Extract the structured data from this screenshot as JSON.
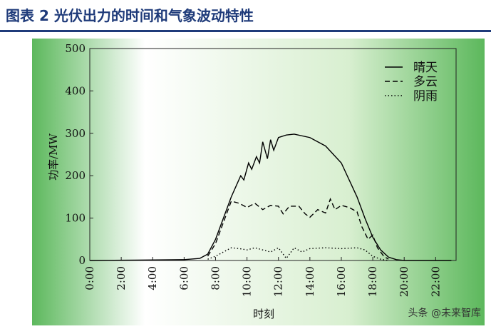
{
  "header": {
    "title": "图表 2   光伏出力的时间和气象波动特性"
  },
  "chart_data": {
    "type": "line",
    "x_label": "时刻",
    "y_label": "功率/MW",
    "xlim": [
      0,
      23.3
    ],
    "ylim": [
      0,
      500
    ],
    "xticks": [
      {
        "value": 0,
        "label": "0:00"
      },
      {
        "value": 2,
        "label": "2:00"
      },
      {
        "value": 4,
        "label": "4:00"
      },
      {
        "value": 6,
        "label": "6:00"
      },
      {
        "value": 8,
        "label": "8:00"
      },
      {
        "value": 10,
        "label": "10:00"
      },
      {
        "value": 12,
        "label": "12:00"
      },
      {
        "value": 14,
        "label": "14:00"
      },
      {
        "value": 16,
        "label": "16:00"
      },
      {
        "value": 18,
        "label": "18:00"
      },
      {
        "value": 20,
        "label": "20:00"
      },
      {
        "value": 22,
        "label": "22:00"
      }
    ],
    "yticks": [
      0,
      100,
      200,
      300,
      400,
      500
    ],
    "legend": "top-right",
    "series": [
      {
        "name": "晴天",
        "color": "#000000",
        "dash": "solid",
        "x": [
          0,
          3,
          6,
          7,
          7.5,
          8,
          8.5,
          9,
          9.3,
          9.6,
          9.8,
          10.1,
          10.3,
          10.6,
          10.8,
          11,
          11.3,
          11.5,
          11.7,
          12,
          12.5,
          13,
          14,
          15,
          16,
          17,
          17.5,
          18,
          18.5,
          19,
          19.5,
          20,
          23
        ],
        "values": [
          0,
          1,
          2,
          5,
          15,
          50,
          100,
          150,
          175,
          200,
          190,
          230,
          215,
          245,
          230,
          280,
          240,
          285,
          260,
          290,
          296,
          298,
          290,
          270,
          230,
          150,
          100,
          55,
          25,
          8,
          2,
          0,
          0
        ]
      },
      {
        "name": "多云",
        "color": "#000000",
        "dash": "dashed",
        "x": [
          7.5,
          8,
          8.5,
          9,
          9.5,
          10,
          10.5,
          11,
          11.5,
          12,
          12.3,
          12.7,
          13.3,
          13.7,
          14,
          14.5,
          15,
          15.3,
          15.6,
          16,
          16.5,
          17,
          17.3,
          17.7,
          18,
          18.3,
          18.7,
          19
        ],
        "values": [
          10,
          40,
          90,
          140,
          135,
          125,
          135,
          120,
          130,
          128,
          110,
          128,
          128,
          110,
          102,
          120,
          112,
          145,
          120,
          130,
          125,
          115,
          80,
          50,
          60,
          30,
          10,
          3
        ]
      },
      {
        "name": "阴雨",
        "color": "#000000",
        "dash": "dotted",
        "x": [
          7.5,
          8,
          8.5,
          9,
          9.5,
          10,
          10.5,
          11,
          11.5,
          12,
          12.5,
          13,
          13.5,
          14,
          15,
          16,
          17,
          17.5,
          18,
          18.5,
          19
        ],
        "values": [
          3,
          10,
          20,
          30,
          28,
          25,
          30,
          25,
          20,
          30,
          5,
          30,
          20,
          28,
          30,
          28,
          30,
          25,
          10,
          3,
          0
        ]
      }
    ]
  },
  "watermark": "头条 @未来智库"
}
